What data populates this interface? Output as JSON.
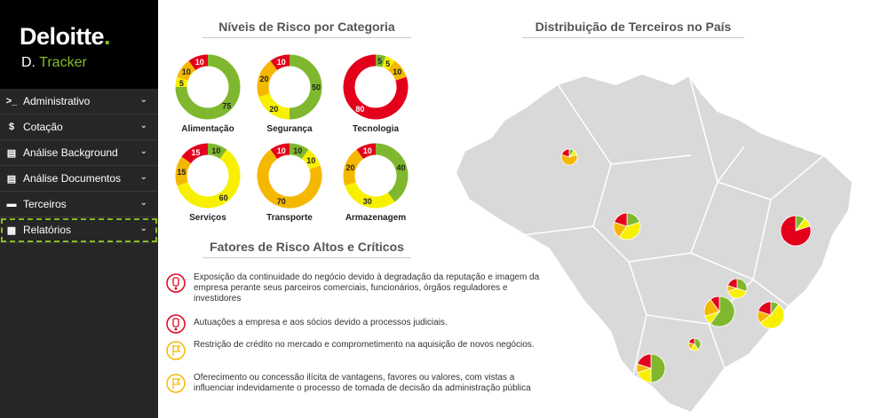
{
  "brand": {
    "name": "Deloitte",
    "dot": ".",
    "product_prefix": "D.",
    "product_name": "Tracker"
  },
  "menu": [
    {
      "label": "Administrativo",
      "icon": "terminal-icon"
    },
    {
      "label": "Cotação",
      "icon": "dollar-icon"
    },
    {
      "label": "Análise Background",
      "icon": "list-icon"
    },
    {
      "label": "Análise Documentos",
      "icon": "list-icon"
    },
    {
      "label": "Terceiros",
      "icon": "people-icon"
    },
    {
      "label": "Relatórios",
      "icon": "report-icon"
    }
  ],
  "colors": {
    "green": "#7fb82e",
    "yellow": "#f7f000",
    "orange": "#f5b800",
    "red": "#e3001b"
  },
  "titles": {
    "risk_levels": "Níveis de Risco por Categoria",
    "distribution": "Distribuição de Terceiros no País",
    "factors": "Fatores de Risco Altos e Críticos"
  },
  "categories": [
    {
      "name": "Alimentação",
      "segments": [
        75,
        5,
        10,
        10
      ]
    },
    {
      "name": "Segurança",
      "segments": [
        50,
        20,
        20,
        10
      ]
    },
    {
      "name": "Tecnologia",
      "segments": [
        5,
        5,
        10,
        80
      ],
      "order": "red-first"
    },
    {
      "name": "Serviços",
      "segments": [
        10,
        60,
        15,
        15
      ]
    },
    {
      "name": "Transporte",
      "segments": [
        10,
        10,
        70,
        10
      ]
    },
    {
      "name": "Armazenagem",
      "segments": [
        40,
        30,
        20,
        10
      ]
    }
  ],
  "factors": [
    {
      "level": "critical",
      "icon": "exclamation-icon",
      "text": "Exposição da continuidade do negócio devido à degradação da reputação e imagem da empresa perante seus parceiros comerciais, funcionários, órgãos reguladores e investidores"
    },
    {
      "level": "critical",
      "icon": "exclamation-icon",
      "text": "Autuações a empresa e aos sócios devido a processos judiciais."
    },
    {
      "level": "high",
      "icon": "flag-icon",
      "text": "Restrição de crédito no mercado e comprometimento na aquisição de novos negócios."
    },
    {
      "level": "high",
      "icon": "flag-icon",
      "text": "Oferecimento ou concessão ilícita de vantagens, favores ou valores, com vistas a influenciar indevidamente o processo de tomada de decisão da administração pública"
    }
  ]
}
